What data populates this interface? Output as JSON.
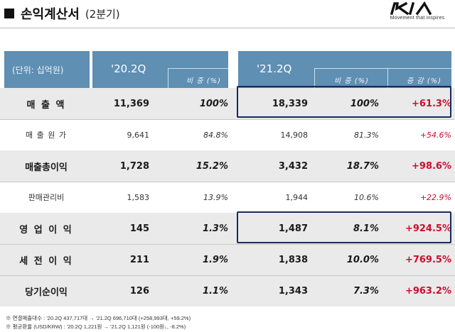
{
  "header": {
    "title": "손익계산서",
    "subtitle": "(2분기)",
    "logo_tagline": "Movement that inspires",
    "colors": {
      "header_blue": "#5f8fb3",
      "highlight_border": "#1b2a5c",
      "increase_red": "#c8102e",
      "shaded_row": "#eaeaea"
    }
  },
  "table": {
    "unit_label": "(단위: 십억원)",
    "period1": "'20.2Q",
    "period2": "'21.2Q",
    "ratio_label1": "비 중 (%)",
    "ratio_label2": "비 중 (%)",
    "change_label": "증 감 (%)",
    "rows": [
      {
        "label": "매 출 액",
        "v1": "11,369",
        "r1": "100%",
        "v2": "18,339",
        "r2": "100%",
        "ch": "+61.3%"
      },
      {
        "label": "매 출 원 가",
        "v1": "9,641",
        "r1": "84.8%",
        "v2": "14,908",
        "r2": "81.3%",
        "ch": "+54.6%"
      },
      {
        "label": "매출총이익",
        "v1": "1,728",
        "r1": "15.2%",
        "v2": "3,432",
        "r2": "18.7%",
        "ch": "+98.6%"
      },
      {
        "label": "판매관리비",
        "v1": "1,583",
        "r1": "13.9%",
        "v2": "1,944",
        "r2": "10.6%",
        "ch": "+22.9%"
      },
      {
        "label": "영 업 이 익",
        "v1": "145",
        "r1": "1.3%",
        "v2": "1,487",
        "r2": "8.1%",
        "ch": "+924.5%"
      },
      {
        "label": "세 전 이 익",
        "v1": "211",
        "r1": "1.9%",
        "v2": "1,838",
        "r2": "10.0%",
        "ch": "+769.5%"
      },
      {
        "label": "당기순이익",
        "v1": "126",
        "r1": "1.1%",
        "v2": "1,343",
        "r2": "7.3%",
        "ch": "+963.2%"
      }
    ]
  },
  "notes": {
    "line1": "※  연결매출대수 : '20.2Q 437,717대  →  '21.2Q 696,710대 (+258,993대, +59.2%)",
    "line2": "※  평균환율 (USD/KRW) : '20.2Q 1,221원  →  '21.2Q 1,121원 (-100원↓, -8.2%)"
  }
}
